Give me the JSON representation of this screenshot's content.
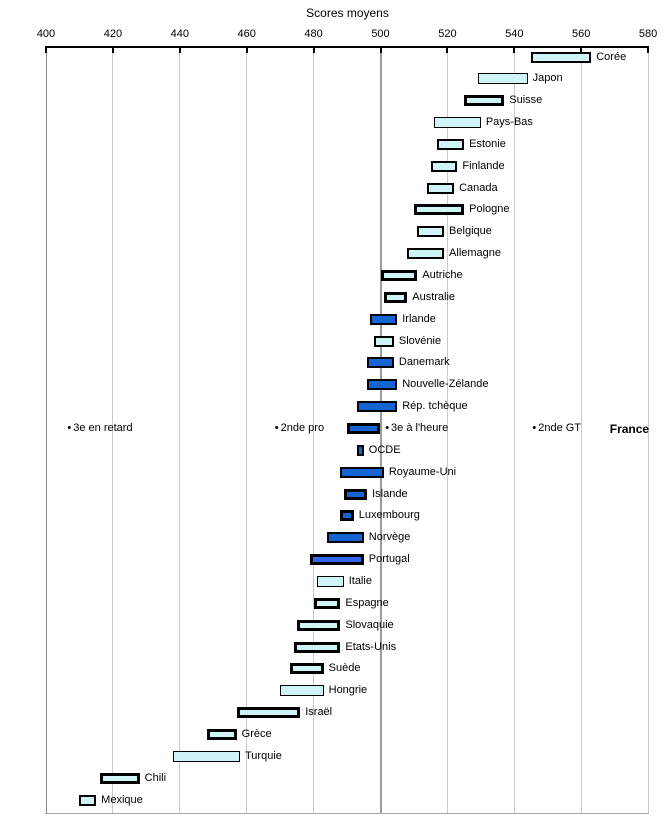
{
  "colors": {
    "bar_light": "#CEF4F6",
    "bar_dark": "#1464D2",
    "bar_bright": "#3366F0",
    "bar_border": "#000000",
    "grid": "#C9C9C9",
    "grid_major": "#9B9B9B",
    "axis_line": "#000000"
  },
  "chart_data": {
    "type": "bar",
    "orientation": "horizontal-range",
    "title": "Scores moyens",
    "xlabel": "Scores moyens",
    "xlim": [
      400,
      580
    ],
    "xstep": 20,
    "grid": true,
    "legend": "none",
    "rows": [
      {
        "label": "Corée",
        "lo": 545,
        "hi": 563,
        "color": "light",
        "bw": 2
      },
      {
        "label": "Japon",
        "lo": 529,
        "hi": 544,
        "color": "light",
        "bw": 1.5
      },
      {
        "label": "Suisse",
        "lo": 525,
        "hi": 537,
        "color": "light",
        "bw": 3
      },
      {
        "label": "Pays-Bas",
        "lo": 516,
        "hi": 530,
        "color": "light",
        "bw": 1.5
      },
      {
        "label": "Estonie",
        "lo": 517,
        "hi": 525,
        "color": "light",
        "bw": 2
      },
      {
        "label": "Finlande",
        "lo": 515,
        "hi": 523,
        "color": "light",
        "bw": 2
      },
      {
        "label": "Canada",
        "lo": 514,
        "hi": 522,
        "color": "light",
        "bw": 2
      },
      {
        "label": "Pologne",
        "lo": 510,
        "hi": 525,
        "color": "light",
        "bw": 3
      },
      {
        "label": "Belgique",
        "lo": 511,
        "hi": 519,
        "color": "light",
        "bw": 2
      },
      {
        "label": "Allemagne",
        "lo": 508,
        "hi": 519,
        "color": "light",
        "bw": 2
      },
      {
        "label": "Autriche",
        "lo": 500,
        "hi": 511,
        "color": "light",
        "bw": 3
      },
      {
        "label": "Australie",
        "lo": 501,
        "hi": 508,
        "color": "light",
        "bw": 3
      },
      {
        "label": "Irlande",
        "lo": 497,
        "hi": 505,
        "color": "dark",
        "bw": 2
      },
      {
        "label": "Slovénie",
        "lo": 498,
        "hi": 504,
        "color": "light",
        "bw": 2
      },
      {
        "label": "Danemark",
        "lo": 496,
        "hi": 504,
        "color": "dark",
        "bw": 2
      },
      {
        "label": "Nouvelle-Zélande",
        "lo": 496,
        "hi": 505,
        "color": "dark",
        "bw": 2
      },
      {
        "label": "Rép. tchèque",
        "lo": 493,
        "hi": 505,
        "color": "dark",
        "bw": 2
      },
      {
        "label": "France",
        "france_row": true,
        "bar": {
          "lo": 490,
          "hi": 500,
          "color": "dark",
          "bw": 3
        },
        "markers": [
          {
            "label": "3e en retard",
            "value": 407
          },
          {
            "label": "2nde pro",
            "value": 469
          },
          {
            "label": "3e à l'heure",
            "value": 502
          },
          {
            "label": "2nde GT",
            "value": 546
          }
        ]
      },
      {
        "label": "OCDE",
        "lo": 493,
        "hi": 495,
        "color": "dark",
        "bw": 2
      },
      {
        "label": "Royaume-Uni",
        "lo": 488,
        "hi": 501,
        "color": "dark",
        "bw": 2
      },
      {
        "label": "Islande",
        "lo": 489,
        "hi": 496,
        "color": "dark",
        "bw": 3
      },
      {
        "label": "Luxembourg",
        "lo": 488,
        "hi": 492,
        "color": "dark",
        "bw": 3
      },
      {
        "label": "Norvège",
        "lo": 484,
        "hi": 495,
        "color": "dark",
        "bw": 2
      },
      {
        "label": "Portugal",
        "lo": 479,
        "hi": 495,
        "color": "bright",
        "bw": 3
      },
      {
        "label": "Italie",
        "lo": 481,
        "hi": 489,
        "color": "light",
        "bw": 1.5
      },
      {
        "label": "Espagne",
        "lo": 480,
        "hi": 488,
        "color": "light",
        "bw": 3
      },
      {
        "label": "Slovaquie",
        "lo": 475,
        "hi": 488,
        "color": "light",
        "bw": 3
      },
      {
        "label": "Etats-Unis",
        "lo": 474,
        "hi": 488,
        "color": "light",
        "bw": 3
      },
      {
        "label": "Suède",
        "lo": 473,
        "hi": 483,
        "color": "light",
        "bw": 3
      },
      {
        "label": "Hongrie",
        "lo": 470,
        "hi": 483,
        "color": "light",
        "bw": 1.5
      },
      {
        "label": "Israël",
        "lo": 457,
        "hi": 476,
        "color": "light",
        "bw": 3
      },
      {
        "label": "Grèce",
        "lo": 448,
        "hi": 457,
        "color": "light",
        "bw": 3
      },
      {
        "label": "Turquie",
        "lo": 438,
        "hi": 458,
        "color": "light",
        "bw": 1.5
      },
      {
        "label": "Chili",
        "lo": 416,
        "hi": 428,
        "color": "light",
        "bw": 3
      },
      {
        "label": "Mexique",
        "lo": 410,
        "hi": 415,
        "color": "light",
        "bw": 2
      }
    ]
  }
}
